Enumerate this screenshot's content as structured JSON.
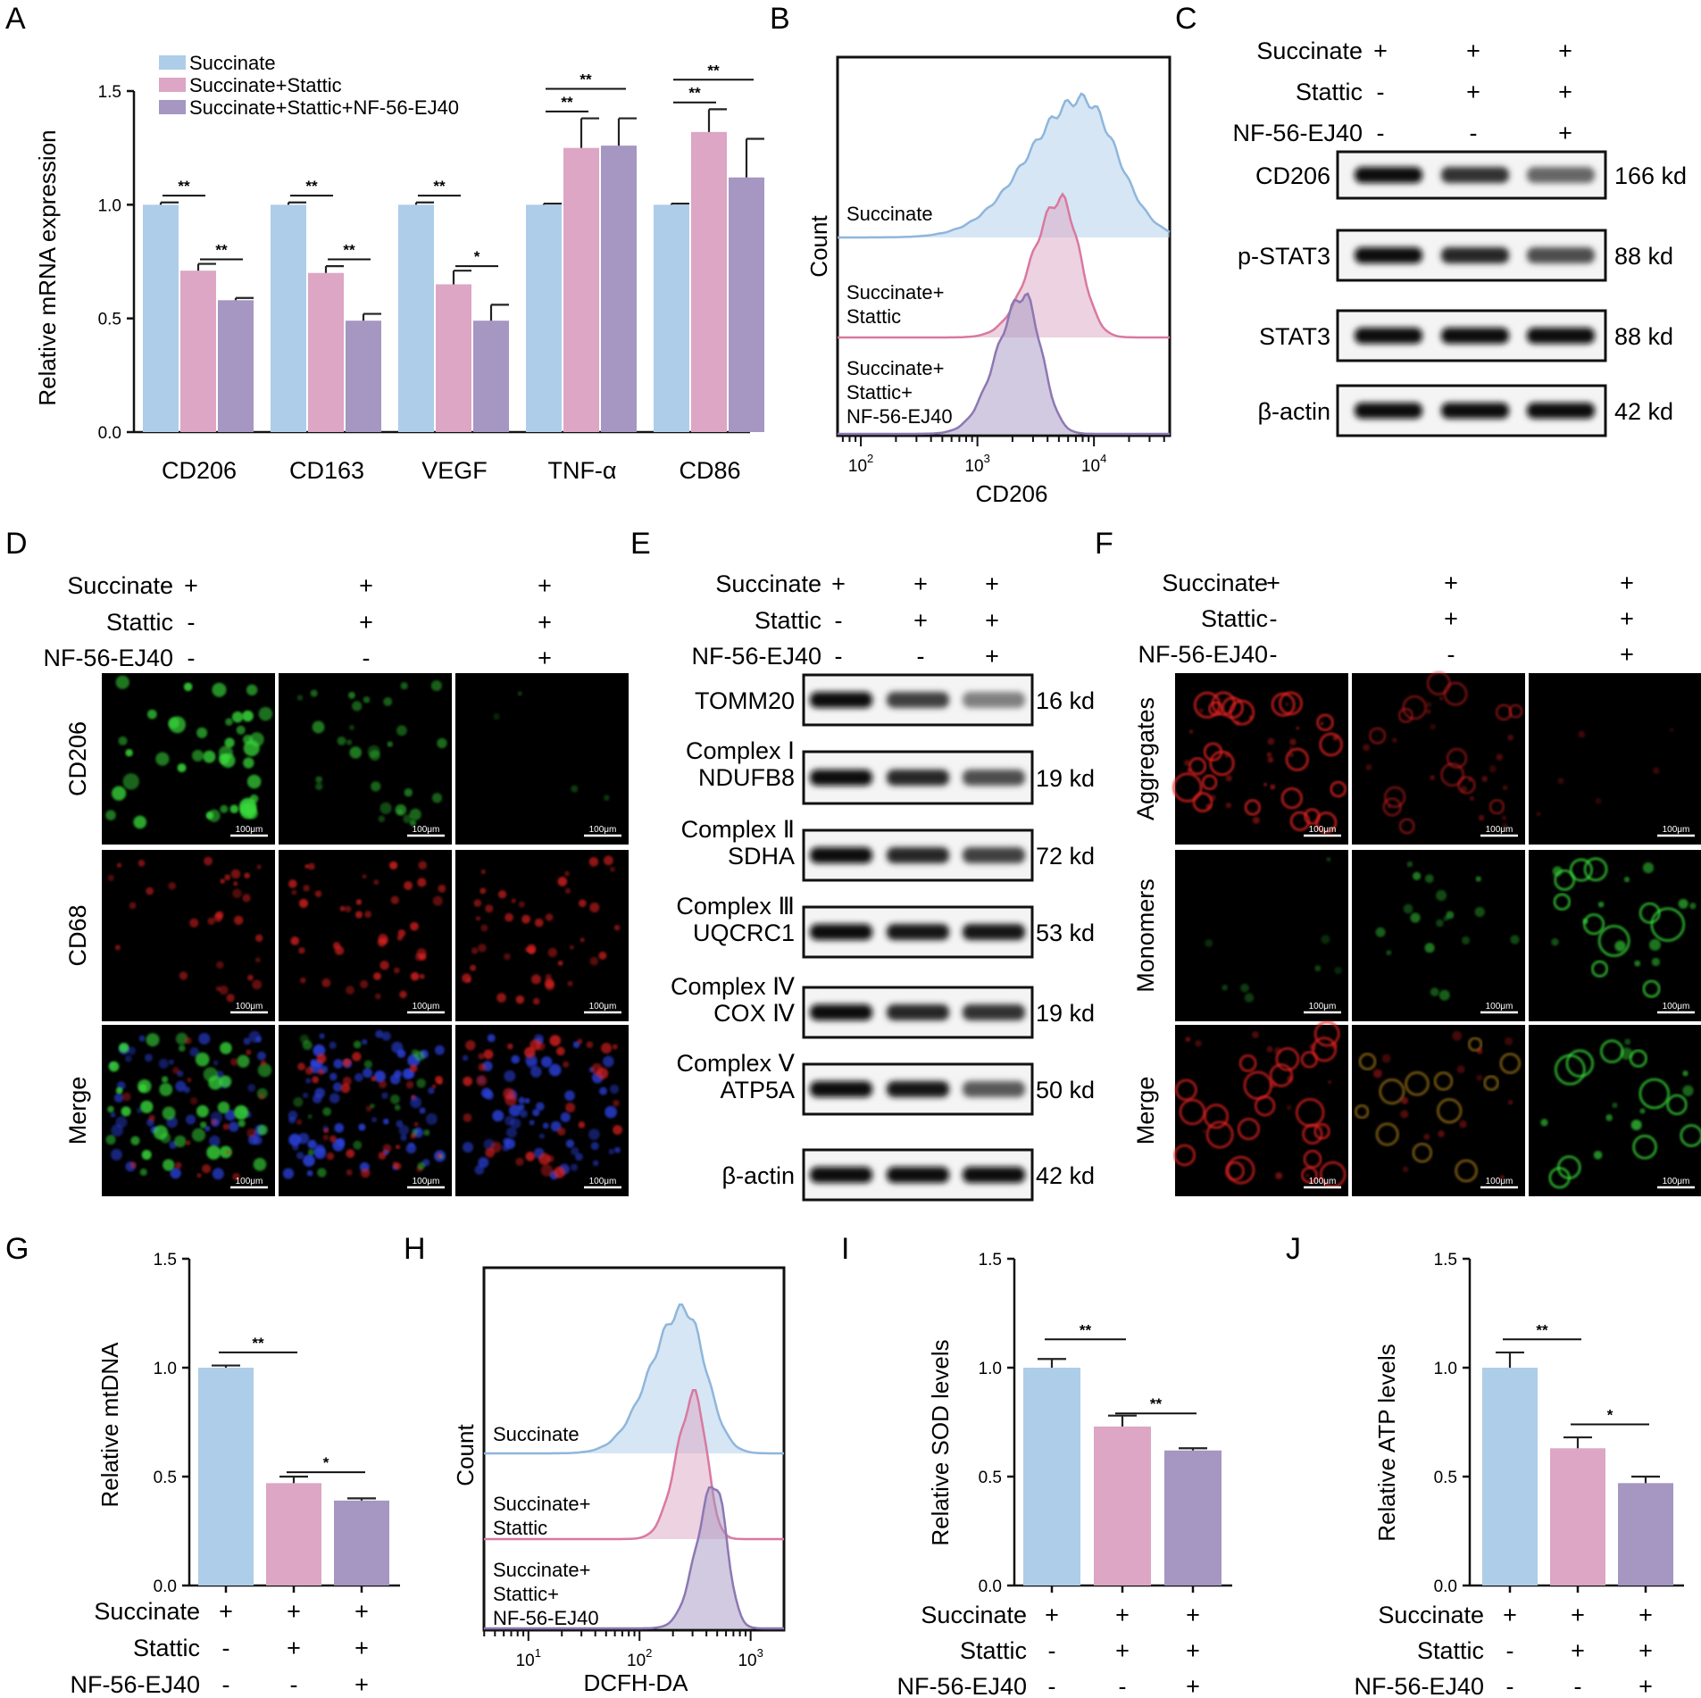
{
  "panels": {
    "A": "A",
    "B": "B",
    "C": "C",
    "D": "D",
    "E": "E",
    "F": "F",
    "G": "G",
    "H": "H",
    "I": "I",
    "J": "J"
  },
  "colors": {
    "succinate": "#aecde9",
    "stattic": "#dca6c4",
    "nf": "#a596c2",
    "hist_blue_line": "#8fb6db",
    "hist_pink_line": "#d9799f",
    "hist_purple_line": "#8c78b2",
    "fluor_green": "#39d93a",
    "fluor_red": "#e02424",
    "fluor_blue": "#2b3fd8"
  },
  "treatment_rows": {
    "succinate": "Succinate",
    "stattic": "Stattic",
    "nf": "NF-56-EJ40",
    "marks": [
      [
        "+",
        "+",
        "+"
      ],
      [
        "-",
        "+",
        "+"
      ],
      [
        "-",
        "-",
        "+"
      ]
    ]
  },
  "chart_data": [
    {
      "panel": "A",
      "type": "bar",
      "categories": [
        "CD206",
        "CD163",
        "VEGF",
        "TNF-α",
        "CD86"
      ],
      "series": [
        {
          "name": "Succinate",
          "values": [
            1.0,
            1.0,
            1.0,
            1.0,
            1.0
          ],
          "errors": [
            0.01,
            0.01,
            0.01,
            0.005,
            0.005
          ]
        },
        {
          "name": "Succinate+Stattic",
          "values": [
            0.71,
            0.7,
            0.65,
            1.25,
            1.32
          ],
          "errors": [
            0.03,
            0.03,
            0.06,
            0.13,
            0.1
          ]
        },
        {
          "name": "Succinate+Stattic+NF-56-EJ40",
          "values": [
            0.58,
            0.49,
            0.49,
            1.26,
            1.12
          ],
          "errors": [
            0.01,
            0.03,
            0.07,
            0.12,
            0.17
          ]
        }
      ],
      "ylabel": "Relative mRNA expression",
      "ylim": [
        0,
        1.5
      ],
      "yticks": [
        "0.0",
        "0.5",
        "1.0",
        "1.5"
      ],
      "significance": [
        {
          "cat": 0,
          "from": 0,
          "to": 1,
          "level": 1.04,
          "text": "**"
        },
        {
          "cat": 0,
          "from": 1,
          "to": 2,
          "level": 0.76,
          "text": "**"
        },
        {
          "cat": 1,
          "from": 0,
          "to": 1,
          "level": 1.04,
          "text": "**"
        },
        {
          "cat": 1,
          "from": 1,
          "to": 2,
          "level": 0.76,
          "text": "**"
        },
        {
          "cat": 2,
          "from": 0,
          "to": 1,
          "level": 1.04,
          "text": "**"
        },
        {
          "cat": 2,
          "from": 1,
          "to": 2,
          "level": 0.73,
          "text": "*"
        },
        {
          "cat": 3,
          "from": 0,
          "to": 1,
          "level": 1.41,
          "text": "**"
        },
        {
          "cat": 3,
          "from": 0,
          "to": 2,
          "level": 1.51,
          "text": "**"
        },
        {
          "cat": 4,
          "from": 0,
          "to": 1,
          "level": 1.45,
          "text": "**"
        },
        {
          "cat": 4,
          "from": 0,
          "to": 2,
          "level": 1.55,
          "text": "**"
        }
      ]
    },
    {
      "panel": "G",
      "type": "bar",
      "categories": [
        "Succinate",
        "Succinate+Stattic",
        "Succinate+Stattic+NF-56-EJ40"
      ],
      "values": [
        1.0,
        0.47,
        0.39
      ],
      "errors": [
        0.01,
        0.03,
        0.01
      ],
      "ylabel": "Relative mtDNA",
      "ylim": [
        0,
        1.5
      ],
      "yticks": [
        "0.0",
        "0.5",
        "1.0",
        "1.5"
      ],
      "significance": [
        {
          "from": 0,
          "to": 1,
          "level": 1.07,
          "text": "**"
        },
        {
          "from": 1,
          "to": 2,
          "level": 0.52,
          "text": "*"
        }
      ]
    },
    {
      "panel": "I",
      "type": "bar",
      "categories": [
        "Succinate",
        "Succinate+Stattic",
        "Succinate+Stattic+NF-56-EJ40"
      ],
      "values": [
        1.0,
        0.73,
        0.62
      ],
      "errors": [
        0.04,
        0.05,
        0.01
      ],
      "ylabel": "Relative SOD levels",
      "ylim": [
        0,
        1.5
      ],
      "yticks": [
        "0.0",
        "0.5",
        "1.0",
        "1.5"
      ],
      "significance": [
        {
          "from": 0,
          "to": 1,
          "level": 1.13,
          "text": "**"
        },
        {
          "from": 1,
          "to": 2,
          "level": 0.79,
          "text": "**"
        }
      ]
    },
    {
      "panel": "J",
      "type": "bar",
      "categories": [
        "Succinate",
        "Succinate+Stattic",
        "Succinate+Stattic+NF-56-EJ40"
      ],
      "values": [
        1.0,
        0.63,
        0.47
      ],
      "errors": [
        0.07,
        0.05,
        0.03
      ],
      "ylabel": "Relative ATP levels",
      "ylim": [
        0,
        1.5
      ],
      "yticks": [
        "0.0",
        "0.5",
        "1.0",
        "1.5"
      ],
      "significance": [
        {
          "from": 0,
          "to": 1,
          "level": 1.13,
          "text": "**"
        },
        {
          "from": 1,
          "to": 2,
          "level": 0.74,
          "text": "*"
        }
      ]
    },
    {
      "panel": "B",
      "type": "area",
      "xlabel": "CD206",
      "ylabel": "Count",
      "x_log_range": [
        1.8,
        4.65
      ],
      "xticks": [
        {
          "base": "10",
          "exp": "2",
          "log": 2
        },
        {
          "base": "10",
          "exp": "3",
          "log": 3
        },
        {
          "base": "10",
          "exp": "4",
          "log": 4
        }
      ],
      "series": [
        {
          "name": "Succinate",
          "label_lines": [
            "Succinate"
          ],
          "peak_log": 3.9,
          "width": 0.34,
          "lane": 0
        },
        {
          "name": "Succinate+Stattic",
          "label_lines": [
            "Succinate+",
            "Stattic"
          ],
          "peak_log": 3.72,
          "width": 0.18,
          "lane": 1
        },
        {
          "name": "Succinate+Stattic+NF-56-EJ40",
          "label_lines": [
            "Succinate+",
            "Stattic+",
            "NF-56-EJ40"
          ],
          "peak_log": 3.4,
          "width": 0.17,
          "lane": 2
        }
      ]
    },
    {
      "panel": "H",
      "type": "area",
      "xlabel": "DCFH-DA",
      "ylabel": "Count",
      "x_log_range": [
        0.6,
        3.3
      ],
      "xticks": [
        {
          "base": "10",
          "exp": "1",
          "log": 1
        },
        {
          "base": "10",
          "exp": "2",
          "log": 2
        },
        {
          "base": "10",
          "exp": "3",
          "log": 3
        }
      ],
      "series": [
        {
          "name": "Succinate",
          "label_lines": [
            "Succinate"
          ],
          "peak_log": 2.4,
          "width": 0.22,
          "lane": 0
        },
        {
          "name": "Succinate+Stattic",
          "label_lines": [
            "Succinate+",
            "Stattic"
          ],
          "peak_log": 2.5,
          "width": 0.12,
          "lane": 1
        },
        {
          "name": "Succinate+Stattic+NF-56-EJ40",
          "label_lines": [
            "Succinate+",
            "Stattic+",
            "NF-56-EJ40"
          ],
          "peak_log": 2.68,
          "width": 0.12,
          "lane": 2
        }
      ]
    }
  ],
  "blot_C": {
    "bands": [
      {
        "label": "CD206",
        "kd": "166 kd",
        "intensity": [
          0.95,
          0.8,
          0.6
        ]
      },
      {
        "label": "p-STAT3",
        "kd": "88 kd",
        "intensity": [
          0.95,
          0.85,
          0.7
        ]
      },
      {
        "label": "STAT3",
        "kd": "88 kd",
        "intensity": [
          0.95,
          0.95,
          0.95
        ]
      },
      {
        "label": "β-actin",
        "kd": "42 kd",
        "intensity": [
          0.97,
          0.97,
          0.97
        ]
      }
    ]
  },
  "blot_E": {
    "bands": [
      {
        "label": [
          "TOMM20"
        ],
        "kd": "16 kd",
        "intensity": [
          0.95,
          0.75,
          0.5
        ]
      },
      {
        "label": [
          "Complex Ⅰ",
          "NDUFB8"
        ],
        "kd": "19 kd",
        "intensity": [
          0.95,
          0.85,
          0.7
        ]
      },
      {
        "label": [
          "Complex Ⅱ",
          "SDHA"
        ],
        "kd": "72 kd",
        "intensity": [
          0.95,
          0.85,
          0.75
        ]
      },
      {
        "label": [
          "Complex Ⅲ",
          "UQCRC1"
        ],
        "kd": "53 kd",
        "intensity": [
          0.95,
          0.9,
          0.9
        ]
      },
      {
        "label": [
          "Complex Ⅳ",
          "COX Ⅳ"
        ],
        "kd": "19 kd",
        "intensity": [
          0.95,
          0.85,
          0.8
        ]
      },
      {
        "label": [
          "Complex Ⅴ",
          "ATP5A"
        ],
        "kd": "50 kd",
        "intensity": [
          0.95,
          0.9,
          0.65
        ]
      },
      {
        "label": [
          "β-actin"
        ],
        "kd": "42 kd",
        "intensity": [
          0.97,
          0.97,
          0.97
        ]
      }
    ]
  },
  "micro_D": {
    "rows": [
      "CD206",
      "CD68",
      "Merge"
    ],
    "scale": "100μm"
  },
  "micro_F": {
    "rows": [
      "Aggregates",
      "Monomers",
      "Merge"
    ],
    "scale": "100μm"
  }
}
